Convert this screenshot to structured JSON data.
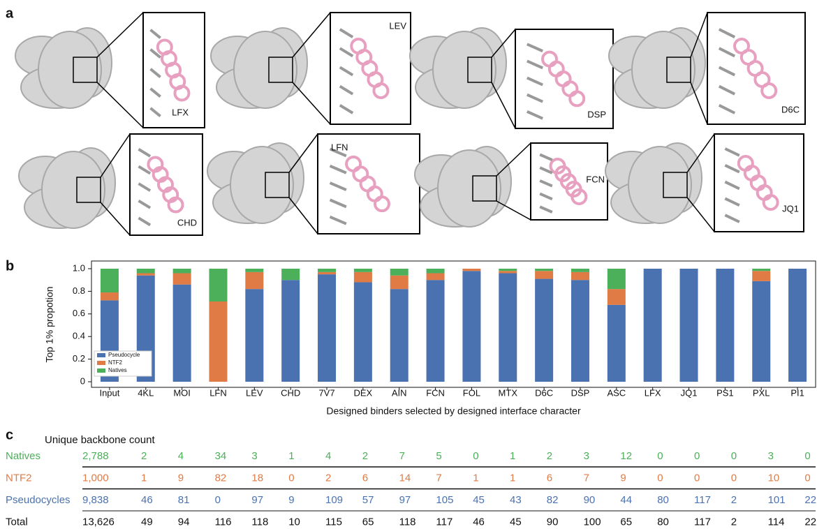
{
  "panel_labels": [
    "a",
    "b",
    "c"
  ],
  "panel_a": {
    "labels": [
      "LFX",
      "LEV",
      "DSP",
      "D6C",
      "CHD",
      "LFN",
      "FCN",
      "JQ1"
    ]
  },
  "chart_data": {
    "type": "bar",
    "stacked": true,
    "ylabel": "Top 1% propotion",
    "xlabel": "Designed binders selected by designed interface character",
    "categories": [
      "Input",
      "4KL",
      "MOI",
      "LFN",
      "LEV",
      "CHD",
      "7V7",
      "DEX",
      "AIN",
      "FCN",
      "FOL",
      "MTX",
      "D6C",
      "DSP",
      "ASC",
      "LFX",
      "JQ1",
      "PS1",
      "PXL",
      "PI1"
    ],
    "series": [
      {
        "name": "Pseudocycle",
        "color": "#4a72b0",
        "values": [
          0.72,
          0.94,
          0.86,
          0,
          0.82,
          0.9,
          0.95,
          0.88,
          0.82,
          0.9,
          0.98,
          0.96,
          0.91,
          0.9,
          0.68,
          1,
          1,
          1,
          0.89,
          1
        ]
      },
      {
        "name": "NTF2",
        "color": "#e07b45",
        "values": [
          0.07,
          0.02,
          0.1,
          0.71,
          0.15,
          0,
          0.02,
          0.09,
          0.12,
          0.06,
          0.02,
          0.02,
          0.07,
          0.07,
          0.14,
          0,
          0,
          0,
          0.09,
          0
        ]
      },
      {
        "name": "Natives",
        "color": "#4caf5a",
        "values": [
          0.21,
          0.04,
          0.04,
          0.29,
          0.03,
          0.1,
          0.03,
          0.03,
          0.06,
          0.04,
          0,
          0.02,
          0.02,
          0.03,
          0.18,
          0,
          0,
          0,
          0.02,
          0
        ]
      }
    ],
    "ylim": [
      0,
      1.0
    ],
    "yticks": [
      0,
      0.2,
      0.4,
      0.6,
      0.8,
      {
        "value": 1,
        "label": "1.0"
      }
    ],
    "legend": "lower left"
  },
  "table": {
    "title": "Unique backbone count",
    "rows": [
      {
        "label": "Natives",
        "color": "#4caf5a",
        "cells": [
          "2,788",
          "2",
          "4",
          "34",
          "3",
          "1",
          "4",
          "2",
          "7",
          "5",
          "0",
          "1",
          "2",
          "3",
          "12",
          "0",
          "0",
          "0",
          "3",
          "0"
        ]
      },
      {
        "label": "NTF2",
        "color": "#e07b45",
        "cells": [
          "1,000",
          "1",
          "9",
          "82",
          "18",
          "0",
          "2",
          "6",
          "14",
          "7",
          "1",
          "1",
          "6",
          "7",
          "9",
          "0",
          "0",
          "0",
          "10",
          "0"
        ]
      },
      {
        "label": "Pseudocycles",
        "color": "#4a72b0",
        "cells": [
          "9,838",
          "46",
          "81",
          "0",
          "97",
          "9",
          "109",
          "57",
          "97",
          "105",
          "45",
          "43",
          "82",
          "90",
          "44",
          "80",
          "117",
          "2",
          "101",
          "22"
        ]
      },
      {
        "label": "Total",
        "color": "#111111",
        "cells": [
          "13,626",
          "49",
          "94",
          "116",
          "118",
          "10",
          "115",
          "65",
          "118",
          "117",
          "46",
          "45",
          "90",
          "100",
          "65",
          "80",
          "117",
          "2",
          "114",
          "22"
        ]
      }
    ]
  }
}
